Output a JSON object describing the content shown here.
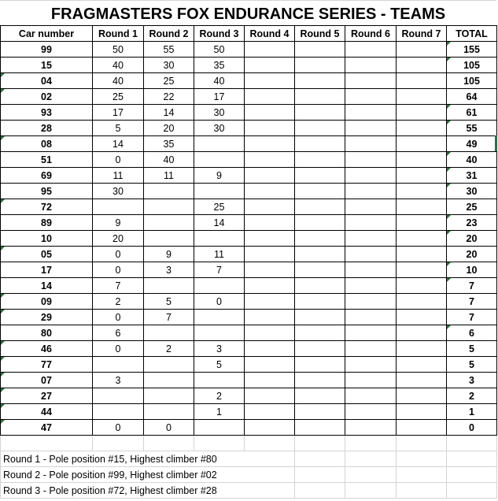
{
  "title": "FRAGMASTERS FOX ENDURANCE SERIES - TEAMS",
  "columns": [
    "Car number",
    "Round 1",
    "Round 2",
    "Round 3",
    "Round 4",
    "Round 5",
    "Round 6",
    "Round 7",
    "TOTAL"
  ],
  "rows": [
    {
      "car": "99",
      "r": [
        "50",
        "55",
        "50",
        "",
        "",
        "",
        ""
      ],
      "total": "155"
    },
    {
      "car": "15",
      "r": [
        "40",
        "30",
        "35",
        "",
        "",
        "",
        ""
      ],
      "total": "105"
    },
    {
      "car": "04",
      "r": [
        "40",
        "25",
        "40",
        "",
        "",
        "",
        ""
      ],
      "total": "105"
    },
    {
      "car": "02",
      "r": [
        "25",
        "22",
        "17",
        "",
        "",
        "",
        ""
      ],
      "total": "64"
    },
    {
      "car": "93",
      "r": [
        "17",
        "14",
        "30",
        "",
        "",
        "",
        ""
      ],
      "total": "61"
    },
    {
      "car": "28",
      "r": [
        "5",
        "20",
        "30",
        "",
        "",
        "",
        ""
      ],
      "total": "55"
    },
    {
      "car": "08",
      "r": [
        "14",
        "35",
        "",
        "",
        "",
        "",
        ""
      ],
      "total": "49"
    },
    {
      "car": "51",
      "r": [
        "0",
        "40",
        "",
        "",
        "",
        "",
        ""
      ],
      "total": "40"
    },
    {
      "car": "69",
      "r": [
        "11",
        "11",
        "9",
        "",
        "",
        "",
        ""
      ],
      "total": "31"
    },
    {
      "car": "95",
      "r": [
        "30",
        "",
        "",
        "",
        "",
        "",
        ""
      ],
      "total": "30"
    },
    {
      "car": "72",
      "r": [
        "",
        "",
        "25",
        "",
        "",
        "",
        ""
      ],
      "total": "25"
    },
    {
      "car": "89",
      "r": [
        "9",
        "",
        "14",
        "",
        "",
        "",
        ""
      ],
      "total": "23"
    },
    {
      "car": "10",
      "r": [
        "20",
        "",
        "",
        "",
        "",
        "",
        ""
      ],
      "total": "20"
    },
    {
      "car": "05",
      "r": [
        "0",
        "9",
        "11",
        "",
        "",
        "",
        ""
      ],
      "total": "20"
    },
    {
      "car": "17",
      "r": [
        "0",
        "3",
        "7",
        "",
        "",
        "",
        ""
      ],
      "total": "10"
    },
    {
      "car": "14",
      "r": [
        "7",
        "",
        "",
        "",
        "",
        "",
        ""
      ],
      "total": "7"
    },
    {
      "car": "09",
      "r": [
        "2",
        "5",
        "0",
        "",
        "",
        "",
        ""
      ],
      "total": "7"
    },
    {
      "car": "29",
      "r": [
        "0",
        "7",
        "",
        "",
        "",
        "",
        ""
      ],
      "total": "7"
    },
    {
      "car": "80",
      "r": [
        "6",
        "",
        "",
        "",
        "",
        "",
        ""
      ],
      "total": "6"
    },
    {
      "car": "46",
      "r": [
        "0",
        "2",
        "3",
        "",
        "",
        "",
        ""
      ],
      "total": "5"
    },
    {
      "car": "77",
      "r": [
        "",
        "",
        "5",
        "",
        "",
        "",
        ""
      ],
      "total": "5"
    },
    {
      "car": "07",
      "r": [
        "3",
        "",
        "",
        "",
        "",
        "",
        ""
      ],
      "total": "3"
    },
    {
      "car": "27",
      "r": [
        "",
        "",
        "2",
        "",
        "",
        "",
        ""
      ],
      "total": "2"
    },
    {
      "car": "44",
      "r": [
        "",
        "",
        "1",
        "",
        "",
        "",
        ""
      ],
      "total": "1"
    },
    {
      "car": "47",
      "r": [
        "0",
        "0",
        "",
        "",
        "",
        "",
        ""
      ],
      "total": "0"
    }
  ],
  "car_flagged": [
    "04",
    "02",
    "08",
    "72",
    "05",
    "09",
    "29",
    "46",
    "77",
    "07",
    "27",
    "44",
    "47"
  ],
  "total_flagged": [
    "99",
    "15",
    "93",
    "28",
    "51",
    "69",
    "95",
    "89",
    "10",
    "17",
    "14",
    "80"
  ],
  "notes": [
    "Round 1 - Pole position #15, Highest climber #80",
    "Round 2 - Pole position #99, Highest climber #02",
    "Round 3 - Pole position #72, Highest climber #28"
  ],
  "colors": {
    "error_flag": "#1e7b34",
    "selection": "#217346",
    "gridline": "#d4d4d4"
  }
}
